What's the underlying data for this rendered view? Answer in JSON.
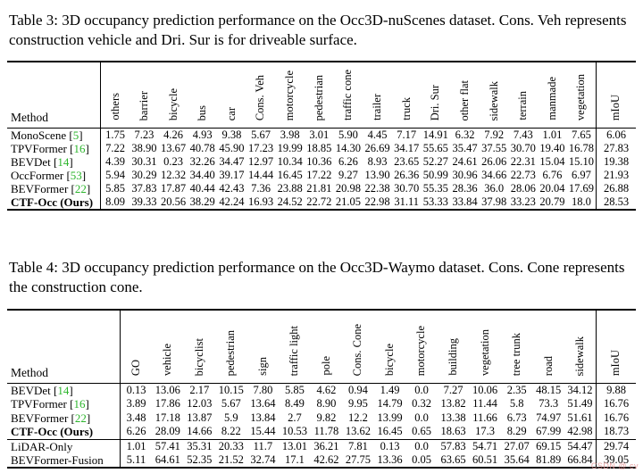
{
  "watermark": "CSDN @ cv",
  "colors": {
    "citation": "#2cb52c",
    "watermark": "#e59494"
  },
  "tables": [
    {
      "caption": "Table 3: 3D occupancy prediction performance on the Occ3D-nuScenes dataset. Cons. Veh represents construction vehicle and Dri. Sur is for driveable surface.",
      "method_header": "Method",
      "miou_header": "mIoU",
      "columns": [
        "others",
        "barrier",
        "bicycle",
        "bus",
        "car",
        "Cons. Veh",
        "motorcycle",
        "pedestrian",
        "traffic cone",
        "trailer",
        "truck",
        "Dri. Sur",
        "other flat",
        "sidewalk",
        "terrain",
        "manmade",
        "vegetation"
      ],
      "rows": [
        {
          "method": "MonoScene",
          "cite": "5",
          "bold": false,
          "rule_above": false,
          "values": [
            "1.75",
            "7.23",
            "4.26",
            "4.93",
            "9.38",
            "5.67",
            "3.98",
            "3.01",
            "5.90",
            "4.45",
            "7.17",
            "14.91",
            "6.32",
            "7.92",
            "7.43",
            "1.01",
            "7.65"
          ],
          "miou": "6.06"
        },
        {
          "method": "TPVFormer",
          "cite": "16",
          "bold": false,
          "rule_above": false,
          "values": [
            "7.22",
            "38.90",
            "13.67",
            "40.78",
            "45.90",
            "17.23",
            "19.99",
            "18.85",
            "14.30",
            "26.69",
            "34.17",
            "55.65",
            "35.47",
            "37.55",
            "30.70",
            "19.40",
            "16.78"
          ],
          "miou": "27.83"
        },
        {
          "method": "BEVDet",
          "cite": "14",
          "bold": false,
          "rule_above": false,
          "values": [
            "4.39",
            "30.31",
            "0.23",
            "32.26",
            "34.47",
            "12.97",
            "10.34",
            "10.36",
            "6.26",
            "8.93",
            "23.65",
            "52.27",
            "24.61",
            "26.06",
            "22.31",
            "15.04",
            "15.10"
          ],
          "miou": "19.38"
        },
        {
          "method": "OccFormer",
          "cite": "53",
          "bold": false,
          "rule_above": false,
          "values": [
            "5.94",
            "30.29",
            "12.32",
            "34.40",
            "39.17",
            "14.44",
            "16.45",
            "17.22",
            "9.27",
            "13.90",
            "26.36",
            "50.99",
            "30.96",
            "34.66",
            "22.73",
            "6.76",
            "6.97"
          ],
          "miou": "21.93"
        },
        {
          "method": "BEVFormer",
          "cite": "22",
          "bold": false,
          "rule_above": false,
          "values": [
            "5.85",
            "37.83",
            "17.87",
            "40.44",
            "42.43",
            "7.36",
            "23.88",
            "21.81",
            "20.98",
            "22.38",
            "30.70",
            "55.35",
            "28.36",
            "36.0",
            "28.06",
            "20.04",
            "17.69"
          ],
          "miou": "26.88"
        },
        {
          "method": "CTF-Occ (Ours)",
          "cite": null,
          "bold": true,
          "rule_above": false,
          "values": [
            "8.09",
            "39.33",
            "20.56",
            "38.29",
            "42.24",
            "16.93",
            "24.52",
            "22.72",
            "21.05",
            "22.98",
            "31.11",
            "53.33",
            "33.84",
            "37.98",
            "33.23",
            "20.79",
            "18.0"
          ],
          "miou": "28.53"
        }
      ]
    },
    {
      "caption": "Table 4: 3D occupancy prediction performance on the Occ3D-Waymo dataset. Cons. Cone represents the construction cone.",
      "method_header": "Method",
      "miou_header": "mIoU",
      "columns": [
        "GO",
        "vehicle",
        "bicyclist",
        "pedestrian",
        "sign",
        "traffic light",
        "pole",
        "Cons. Cone",
        "bicycle",
        "motorcycle",
        "building",
        "vegetation",
        "tree trunk",
        "road",
        "sidewalk"
      ],
      "rows": [
        {
          "method": "BEVDet",
          "cite": "14",
          "bold": false,
          "rule_above": false,
          "values": [
            "0.13",
            "13.06",
            "2.17",
            "10.15",
            "7.80",
            "5.85",
            "4.62",
            "0.94",
            "1.49",
            "0.0",
            "7.27",
            "10.06",
            "2.35",
            "48.15",
            "34.12"
          ],
          "miou": "9.88"
        },
        {
          "method": "TPVFormer",
          "cite": "16",
          "bold": false,
          "rule_above": false,
          "values": [
            "3.89",
            "17.86",
            "12.03",
            "5.67",
            "13.64",
            "8.49",
            "8.90",
            "9.95",
            "14.79",
            "0.32",
            "13.82",
            "11.44",
            "5.8",
            "73.3",
            "51.49"
          ],
          "miou": "16.76"
        },
        {
          "method": "BEVFormer",
          "cite": "22",
          "bold": false,
          "rule_above": false,
          "values": [
            "3.48",
            "17.18",
            "13.87",
            "5.9",
            "13.84",
            "2.7",
            "9.82",
            "12.2",
            "13.99",
            "0.0",
            "13.38",
            "11.66",
            "6.73",
            "74.97",
            "51.61"
          ],
          "miou": "16.76"
        },
        {
          "method": "CTF-Occ (Ours)",
          "cite": null,
          "bold": true,
          "rule_above": false,
          "values": [
            "6.26",
            "28.09",
            "14.66",
            "8.22",
            "15.44",
            "10.53",
            "11.78",
            "13.62",
            "16.45",
            "0.65",
            "18.63",
            "17.3",
            "8.29",
            "67.99",
            "42.98"
          ],
          "miou": "18.73"
        },
        {
          "method": "LiDAR-Only",
          "cite": null,
          "bold": false,
          "rule_above": true,
          "values": [
            "1.01",
            "57.41",
            "35.31",
            "20.33",
            "11.7",
            "13.01",
            "36.21",
            "7.81",
            "0.13",
            "0.0",
            "57.83",
            "54.71",
            "27.07",
            "69.15",
            "54.47"
          ],
          "miou": "29.74"
        },
        {
          "method": "BEVFormer-Fusion",
          "cite": null,
          "bold": false,
          "rule_above": false,
          "values": [
            "5.11",
            "64.61",
            "52.35",
            "21.52",
            "32.74",
            "17.1",
            "42.62",
            "27.75",
            "13.36",
            "0.05",
            "63.65",
            "60.51",
            "35.64",
            "81.89",
            "66.84"
          ],
          "miou": "39.05"
        }
      ]
    }
  ]
}
